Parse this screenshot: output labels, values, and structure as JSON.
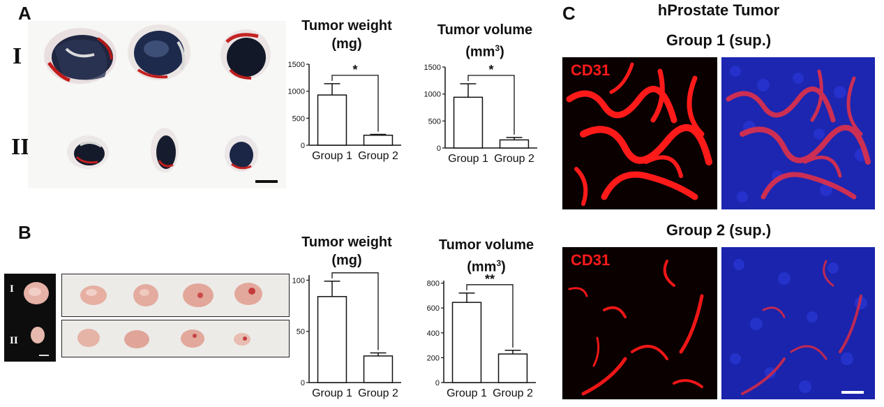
{
  "panels": {
    "A": {
      "letter": "A",
      "row_labels": [
        "I",
        "II"
      ],
      "weight_title_1": "Tumor weight",
      "weight_title_2": "(mg)",
      "volume_title_1": "Tumor volume",
      "volume_title_2_base": "(mm",
      "volume_title_2_sup": "3",
      "volume_title_2_end": ")"
    },
    "B": {
      "letter": "B",
      "row_labels": [
        "I",
        "II"
      ],
      "weight_title_1": "Tumor weight",
      "weight_title_2": "(mg)",
      "volume_title_1": "Tumor volume",
      "volume_title_2_base": "(mm",
      "volume_title_2_sup": "3",
      "volume_title_2_end": ")"
    },
    "C": {
      "letter": "C",
      "title": "hProstate Tumor",
      "group1_caption": "Group 1 (sup.)",
      "group2_caption": "Group 2 (sup.)",
      "stain_label": "CD31"
    }
  },
  "colors": {
    "cd31_red": "#ff1a1a",
    "dapi_blue": "#1e2fc8",
    "tissue_dark": "#1a2340",
    "tissue_pink": "#e8b8ad"
  },
  "chart_data": [
    {
      "id": "A-weight",
      "type": "bar",
      "categories": [
        "Group 1",
        "Group 2"
      ],
      "values": [
        930,
        185
      ],
      "errors": [
        210,
        15
      ],
      "yticks": [
        0,
        500,
        1000,
        1500
      ],
      "ylim": [
        0,
        1500
      ],
      "significance": "*"
    },
    {
      "id": "A-volume",
      "type": "bar",
      "categories": [
        "Group 1",
        "Group 2"
      ],
      "values": [
        940,
        150
      ],
      "errors": [
        250,
        45
      ],
      "yticks": [
        0,
        500,
        1000,
        1500
      ],
      "ylim": [
        0,
        1500
      ],
      "significance": "*"
    },
    {
      "id": "B-weight",
      "type": "bar",
      "categories": [
        "Group 1",
        "Group 2"
      ],
      "values": [
        84,
        26
      ],
      "errors": [
        15,
        3
      ],
      "yticks": [
        0,
        50,
        100
      ],
      "ylim": [
        0,
        105
      ],
      "significance": "**"
    },
    {
      "id": "B-volume",
      "type": "bar",
      "categories": [
        "Group 1",
        "Group 2"
      ],
      "values": [
        645,
        230
      ],
      "errors": [
        75,
        30
      ],
      "yticks": [
        0,
        200,
        400,
        600,
        800
      ],
      "ylim": [
        0,
        820
      ],
      "significance": "**"
    }
  ]
}
